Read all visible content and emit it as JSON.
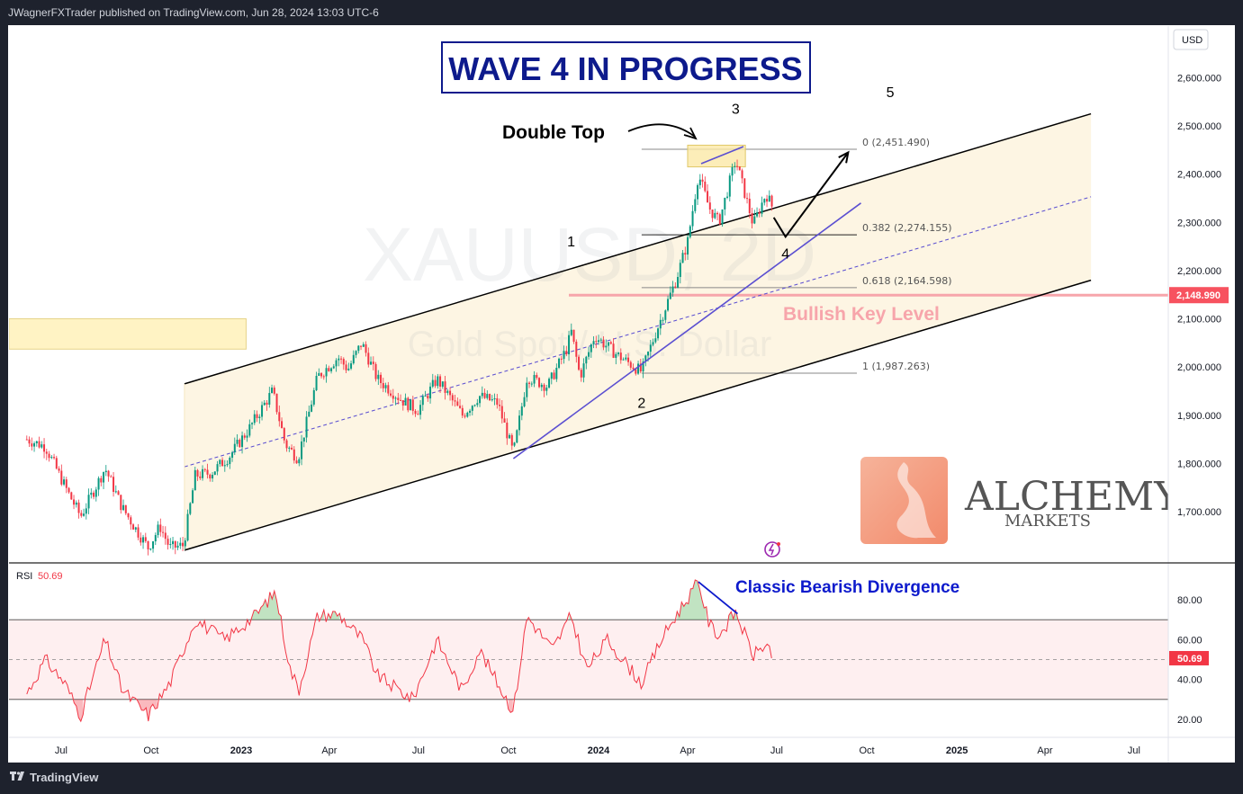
{
  "header": {
    "publisher_line": "JWagnerFXTrader published on TradingView.com, Jun 28, 2024 13:03 UTC-6"
  },
  "footer": {
    "brand": "TradingView"
  },
  "colors": {
    "bull": "#089981",
    "bear": "#f23645",
    "channel": "#000000",
    "trendline": "#6a5acd",
    "rsi": "#f23645",
    "title_blue": "#0d1a8c",
    "key_level": "#f7525f",
    "zone": "#fff3c4"
  },
  "chart_data": [
    {
      "type": "candlestick",
      "title": "WAVE 4 IN PROGRESS",
      "watermark": {
        "symbol": "XAUUSD",
        "interval": "2D",
        "description": "Gold Spot / U.S. Dollar"
      },
      "currency": "USD",
      "y_ticks": [
        "2,600.000",
        "2,500.000",
        "2,400.000",
        "2,300.000",
        "2,200.000",
        "2,100.000",
        "2,000.000",
        "1,900.000",
        "1,800.000",
        "1,700.000"
      ],
      "y_tick_values": [
        2600,
        2500,
        2400,
        2300,
        2200,
        2100,
        2000,
        1900,
        1800,
        1700
      ],
      "ylim": [
        1600,
        2680
      ],
      "x_ticks": [
        "Jul",
        "Oct",
        "2023",
        "Apr",
        "Jul",
        "Oct",
        "2024",
        "Apr",
        "Jul",
        "Oct",
        "2025",
        "Apr",
        "Jul"
      ],
      "x_tick_dates": [
        "2022-07-01",
        "2022-10-01",
        "2023-01-01",
        "2023-04-01",
        "2023-07-01",
        "2023-10-01",
        "2024-01-01",
        "2024-04-01",
        "2024-07-01",
        "2024-10-01",
        "2025-01-01",
        "2025-04-01",
        "2025-07-01"
      ],
      "price_path": [
        [
          "2022-05-27",
          1850
        ],
        [
          "2022-06-15",
          1835
        ],
        [
          "2022-07-08",
          1740
        ],
        [
          "2022-07-21",
          1690
        ],
        [
          "2022-08-15",
          1790
        ],
        [
          "2022-09-01",
          1710
        ],
        [
          "2022-09-15",
          1665
        ],
        [
          "2022-09-28",
          1625
        ],
        [
          "2022-10-10",
          1670
        ],
        [
          "2022-10-20",
          1625
        ],
        [
          "2022-11-03",
          1630
        ],
        [
          "2022-11-15",
          1775
        ],
        [
          "2022-12-01",
          1780
        ],
        [
          "2022-12-20",
          1815
        ],
        [
          "2023-01-10",
          1875
        ],
        [
          "2023-02-02",
          1950
        ],
        [
          "2023-02-15",
          1840
        ],
        [
          "2023-02-28",
          1810
        ],
        [
          "2023-03-20",
          1980
        ],
        [
          "2023-04-10",
          2020
        ],
        [
          "2023-04-20",
          1995
        ],
        [
          "2023-05-04",
          2050
        ],
        [
          "2023-05-20",
          1975
        ],
        [
          "2023-06-15",
          1930
        ],
        [
          "2023-06-30",
          1910
        ],
        [
          "2023-07-20",
          1975
        ],
        [
          "2023-08-15",
          1900
        ],
        [
          "2023-09-01",
          1940
        ],
        [
          "2023-09-20",
          1925
        ],
        [
          "2023-10-06",
          1820
        ],
        [
          "2023-10-20",
          1980
        ],
        [
          "2023-11-10",
          1960
        ],
        [
          "2023-11-30",
          2040
        ],
        [
          "2023-12-04",
          2075
        ],
        [
          "2023-12-13",
          1980
        ],
        [
          "2023-12-28",
          2065
        ],
        [
          "2024-01-20",
          2025
        ],
        [
          "2024-02-14",
          1990
        ],
        [
          "2024-03-01",
          2080
        ],
        [
          "2024-03-20",
          2180
        ],
        [
          "2024-04-01",
          2260
        ],
        [
          "2024-04-12",
          2400
        ],
        [
          "2024-04-23",
          2330
        ],
        [
          "2024-05-03",
          2300
        ],
        [
          "2024-05-20",
          2430
        ],
        [
          "2024-06-07",
          2295
        ],
        [
          "2024-06-20",
          2360
        ],
        [
          "2024-06-28",
          2325
        ]
      ],
      "levels": [
        {
          "label": "Bullish Key Level",
          "value": 2148.99,
          "axis_label": "2,148.990"
        }
      ],
      "fib_retracement": [
        {
          "label": "0 (2,451.490)",
          "value": 2451.49
        },
        {
          "label": "0.382 (2,274.155)",
          "value": 2274.155
        },
        {
          "label": "0.618 (2,164.598)",
          "value": 2164.598
        },
        {
          "label": "1 (1,987.263)",
          "value": 1987.263
        }
      ],
      "channel": {
        "upper": [
          [
            "2022-11-04",
            1965
          ],
          [
            "2025-05-18",
            2525
          ]
        ],
        "lower": [
          [
            "2022-11-04",
            1620
          ],
          [
            "2025-05-18",
            2180
          ]
        ],
        "mid": [
          [
            "2022-11-04",
            1793
          ],
          [
            "2025-05-18",
            2353
          ]
        ]
      },
      "supply_zone": {
        "to": "2023-01-06",
        "top": 2100,
        "bottom": 2037
      },
      "double_top_box": {
        "from": "2024-04-01",
        "to": "2024-05-30",
        "top": 2460,
        "bottom": 2415
      },
      "trendline": [
        [
          "2023-10-06",
          1810
        ],
        [
          "2024-09-25",
          2340
        ]
      ],
      "wave_labels": [
        {
          "label": "1",
          "date": "2023-12-04",
          "value": 2250
        },
        {
          "label": "2",
          "date": "2024-02-14",
          "value": 1915
        },
        {
          "label": "3",
          "date": "2024-05-20",
          "value": 2525
        },
        {
          "label": "4",
          "date": "2024-07-10",
          "value": 2225
        },
        {
          "label": "5",
          "date": "2024-10-25",
          "value": 2560
        }
      ],
      "projection": [
        [
          "2024-06-28",
          2310
        ],
        [
          "2024-07-10",
          2270
        ],
        [
          "2024-09-12",
          2445
        ]
      ],
      "annotations": [
        {
          "text": "Double Top"
        },
        {
          "text": "Bullish Key Level"
        }
      ]
    },
    {
      "type": "line",
      "name": "RSI",
      "legend": {
        "name": "RSI",
        "value": "50.69"
      },
      "y_ticks": [
        "80.00",
        "60.00",
        "40.00",
        "20.00"
      ],
      "y_tick_values": [
        80,
        60,
        40,
        20
      ],
      "ylim": [
        10,
        95
      ],
      "bands": {
        "upper": 70,
        "middle": 50,
        "lower": 30
      },
      "last_value_label": "50.69",
      "values_path": [
        [
          "2022-05-27",
          33
        ],
        [
          "2022-06-15",
          50
        ],
        [
          "2022-07-05",
          38
        ],
        [
          "2022-07-21",
          22
        ],
        [
          "2022-08-15",
          60
        ],
        [
          "2022-09-01",
          35
        ],
        [
          "2022-09-28",
          22
        ],
        [
          "2022-10-20",
          38
        ],
        [
          "2022-11-15",
          70
        ],
        [
          "2022-12-15",
          60
        ],
        [
          "2023-01-15",
          72
        ],
        [
          "2023-02-05",
          84
        ],
        [
          "2023-02-20",
          45
        ],
        [
          "2023-03-01",
          35
        ],
        [
          "2023-03-20",
          72
        ],
        [
          "2023-04-10",
          73
        ],
        [
          "2023-05-05",
          60
        ],
        [
          "2023-05-20",
          42
        ],
        [
          "2023-06-25",
          30
        ],
        [
          "2023-07-20",
          60
        ],
        [
          "2023-08-15",
          34
        ],
        [
          "2023-09-01",
          55
        ],
        [
          "2023-10-06",
          24
        ],
        [
          "2023-10-20",
          72
        ],
        [
          "2023-11-15",
          55
        ],
        [
          "2023-12-04",
          72
        ],
        [
          "2023-12-20",
          45
        ],
        [
          "2024-01-10",
          60
        ],
        [
          "2024-02-14",
          38
        ],
        [
          "2024-03-05",
          60
        ],
        [
          "2024-03-20",
          72
        ],
        [
          "2024-04-12",
          89
        ],
        [
          "2024-04-23",
          68
        ],
        [
          "2024-05-03",
          62
        ],
        [
          "2024-05-20",
          74
        ],
        [
          "2024-06-07",
          52
        ],
        [
          "2024-06-20",
          58
        ],
        [
          "2024-06-28",
          50.69
        ]
      ],
      "divergence": [
        [
          "2024-04-12",
          89
        ],
        [
          "2024-05-22",
          73
        ]
      ],
      "annotations": [
        {
          "text": "Classic Bearish Divergence"
        }
      ]
    }
  ],
  "logo": {
    "name": "ALCHEMY",
    "sub": "MARKETS",
    "emblem": "alchemy-logo-icon"
  }
}
